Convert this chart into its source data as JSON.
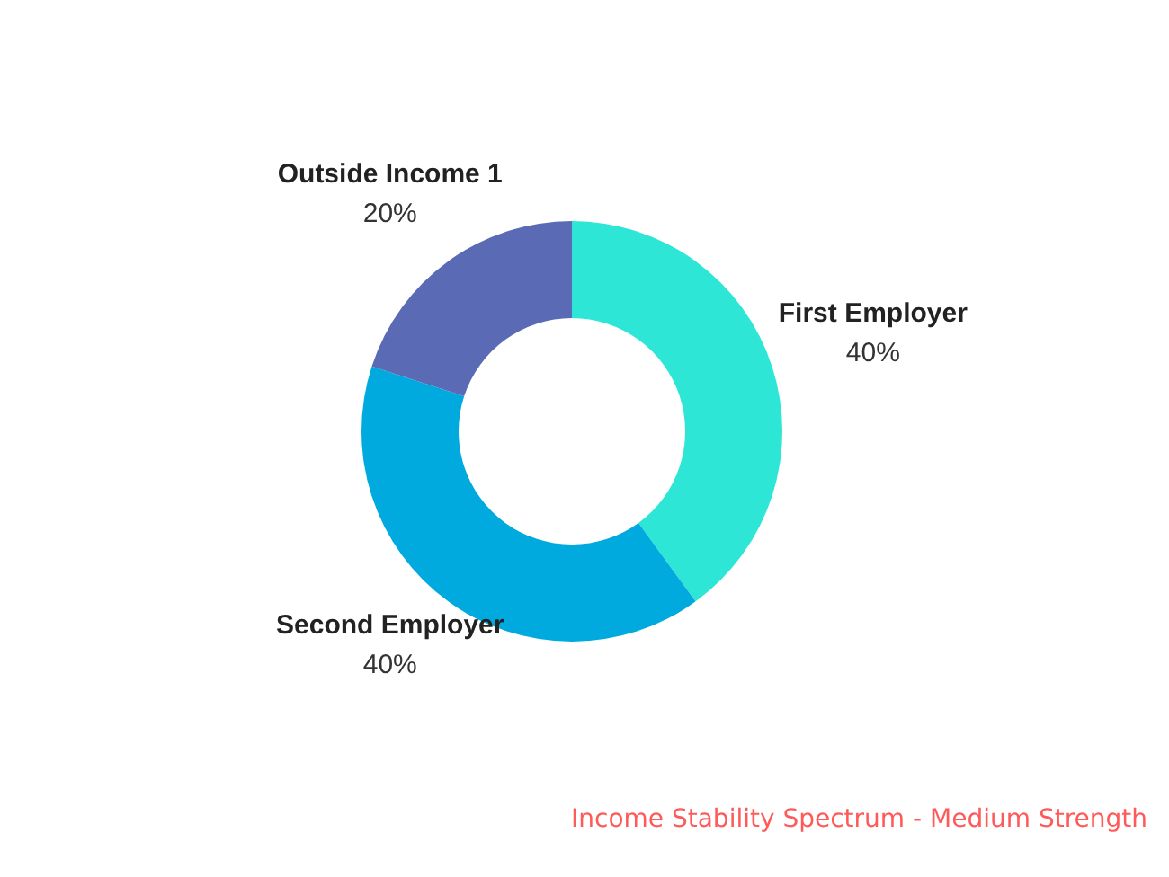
{
  "chart_data": {
    "type": "donut",
    "categories": [
      "First Employer",
      "Second Employer",
      "Outside Income 1"
    ],
    "values": [
      40,
      40,
      20
    ],
    "value_labels": [
      "40%",
      "40%",
      "20%"
    ],
    "colors": [
      "#2ee6d6",
      "#00aadf",
      "#5a6ab5"
    ],
    "annotations": [
      "Income Stability Spectrum - Medium Strength"
    ]
  }
}
